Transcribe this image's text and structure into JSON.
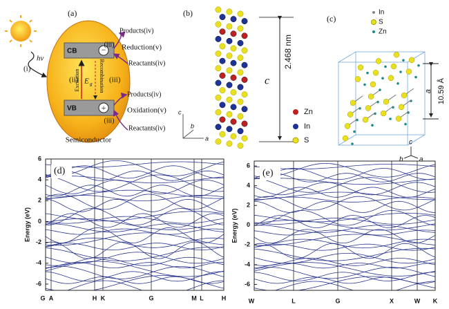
{
  "panel_a": {
    "label": "(a)",
    "cb": "CB",
    "vb": "VB",
    "minus": "−",
    "plus": "+",
    "step_i": "(i)",
    "hv": "hν",
    "step_ii": "(ii)",
    "step_iii_top": "(iii)",
    "step_iii_mid": "(iii)",
    "step_iii_bottom": "(iii)",
    "excitation": "Excitation",
    "recombination": "Recombination",
    "eg": "E",
    "eg_sub": "g",
    "products_top": "Products(iv)",
    "reduction": "Reduction(v)",
    "reactants_top": "Reactants(iv)",
    "products_bottom": "Products(iv)",
    "oxidation": "Oxidation(v)",
    "reactants_bottom": "Reactants(iv)",
    "semiconductor": "Semiconductor"
  },
  "panel_b": {
    "label": "(b)",
    "c_label": "c",
    "height": "2.468 nm",
    "axes": [
      "c",
      "b",
      "a"
    ],
    "legend": [
      "Zn",
      "In",
      "S"
    ]
  },
  "panel_c": {
    "label": "(c)",
    "legend": [
      "In",
      "S",
      "Zn"
    ],
    "a_label": "a",
    "length": "10.59 Å",
    "axes": [
      "c",
      "b",
      "a"
    ]
  },
  "chart_data": [
    {
      "type": "line",
      "label": "(d)",
      "ylabel": "Energy (eV)",
      "ylim": [
        -6.6,
        6
      ],
      "yticks": [
        -6,
        -4,
        -2,
        0,
        2,
        4,
        6
      ],
      "categories": [
        "G",
        "A",
        "H",
        "K",
        "G",
        "M",
        "L",
        "H"
      ]
    },
    {
      "type": "line",
      "label": "(e)",
      "ylabel": "Energy (eV)",
      "ylim": [
        -6.6,
        6.5
      ],
      "yticks": [
        -6,
        -4,
        -2,
        0,
        2,
        4,
        6
      ],
      "categories": [
        "W",
        "L",
        "G",
        "X",
        "W",
        "K"
      ]
    }
  ]
}
